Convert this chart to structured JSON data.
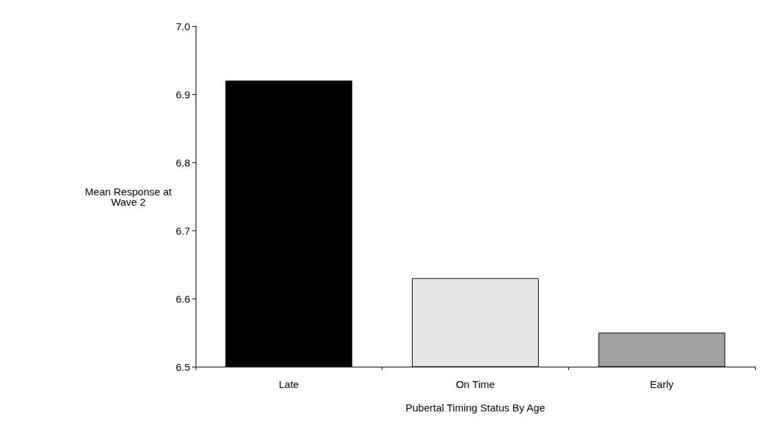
{
  "chart_data": {
    "type": "bar",
    "xlabel": "Pubertal Timing Status By Age",
    "ylabel": "Mean Response at\nWave 2",
    "categories": [
      "Late",
      "On Time",
      "Early"
    ],
    "values": [
      6.92,
      6.63,
      6.55
    ],
    "colors": [
      "#000000",
      "#e6e6e6",
      "#a0a0a0"
    ],
    "ylim": [
      6.5,
      7.0
    ],
    "yticks": [
      6.5,
      6.6,
      6.7,
      6.8,
      6.9,
      {
        "value": 7.0,
        "label": "7.0"
      }
    ],
    "grid": false
  }
}
